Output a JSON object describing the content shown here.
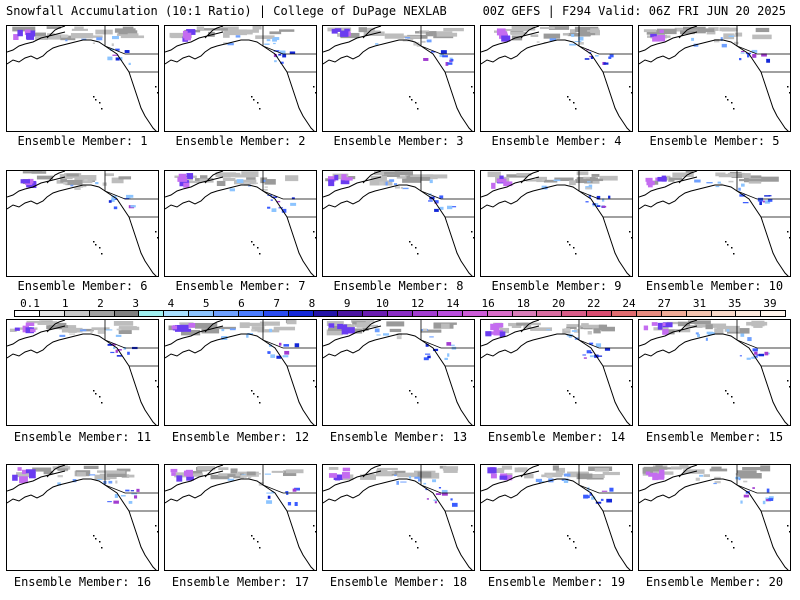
{
  "header": {
    "left_title": "Snowfall Accumulation (10:1 Ratio) | College of DuPage NEXLAB",
    "right_title": "00Z GEFS | F294 Valid: 06Z FRI JUN 20 2025"
  },
  "members": [
    {
      "label": "Ensemble Member: 1"
    },
    {
      "label": "Ensemble Member: 2"
    },
    {
      "label": "Ensemble Member: 3"
    },
    {
      "label": "Ensemble Member: 4"
    },
    {
      "label": "Ensemble Member: 5"
    },
    {
      "label": "Ensemble Member: 6"
    },
    {
      "label": "Ensemble Member: 7"
    },
    {
      "label": "Ensemble Member: 8"
    },
    {
      "label": "Ensemble Member: 9"
    },
    {
      "label": "Ensemble Member: 10"
    },
    {
      "label": "Ensemble Member: 11"
    },
    {
      "label": "Ensemble Member: 12"
    },
    {
      "label": "Ensemble Member: 13"
    },
    {
      "label": "Ensemble Member: 14"
    },
    {
      "label": "Ensemble Member: 15"
    },
    {
      "label": "Ensemble Member: 16"
    },
    {
      "label": "Ensemble Member: 17"
    },
    {
      "label": "Ensemble Member: 18"
    },
    {
      "label": "Ensemble Member: 19"
    },
    {
      "label": "Ensemble Member: 20"
    }
  ],
  "colorbar": {
    "labels": [
      "0.1",
      "1",
      "2",
      "3",
      "4",
      "5",
      "6",
      "7",
      "8",
      "9",
      "10",
      "12",
      "14",
      "16",
      "18",
      "20",
      "22",
      "24",
      "27",
      "31",
      "35",
      "39"
    ],
    "colors": [
      "#ffffff",
      "#e6e6e6",
      "#c8c8c8",
      "#a0a0a0",
      "#808080",
      "#9ff0f0",
      "#a8e0ff",
      "#8cc4ff",
      "#6ea0ff",
      "#4a7cff",
      "#2a4cf0",
      "#1428d8",
      "#2414a8",
      "#4a14a0",
      "#6a1cb0",
      "#8a2cc4",
      "#a23cd0",
      "#b84cdc",
      "#cc5cd8",
      "#d86cc8",
      "#d87cb8",
      "#d86ca0",
      "#d85c88",
      "#d84c70",
      "#e06c70",
      "#e88c80",
      "#f0ac98",
      "#f4c4b0",
      "#f8d8c8",
      "#fce8dc",
      "#fff4ec"
    ]
  }
}
